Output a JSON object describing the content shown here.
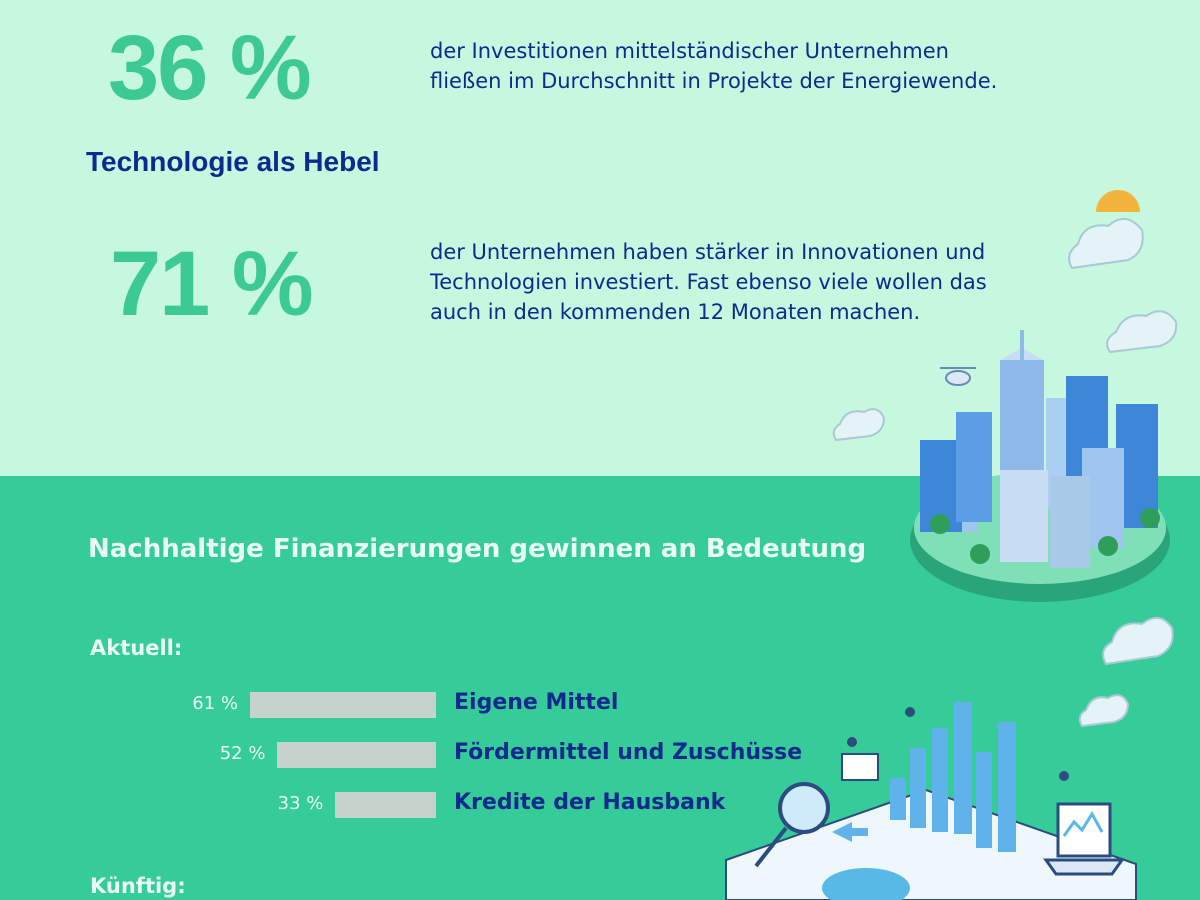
{
  "stats": [
    {
      "value": "36 %",
      "text_line1": "der Investitionen mittelständischer Unternehmen",
      "text_line2": "fließen im Durchschnitt in Projekte der Energiewende."
    },
    {
      "value": "71 %",
      "text_line1": "der Unternehmen haben stärker in Innovationen und",
      "text_line2": "Technologien investiert. Fast ebenso viele wollen das",
      "text_line3": "auch in den kommenden 12 Monaten machen."
    }
  ],
  "subheading": "Technologie als Hebel",
  "section_title": "Nachhaltige Finanzierungen gewinnen an Bedeutung",
  "groups": {
    "current_label": "Aktuell:",
    "future_label": "Künftig:"
  },
  "colors": {
    "top_bg": "#c6f7df",
    "bottom_bg": "#36cc9a",
    "stat_green": "#3cc993",
    "navy": "#0f2a8c",
    "bar_grey": "#c5d3cc"
  },
  "chart_data": {
    "type": "bar",
    "orientation": "horizontal",
    "title": "Nachhaltige Finanzierungen gewinnen an Bedeutung",
    "group": "Aktuell:",
    "categories": [
      "Eigene Mittel",
      "Fördermittel und Zuschüsse",
      "Kredite der Hausbank"
    ],
    "values": [
      61,
      52,
      33
    ],
    "value_labels": [
      "61 %",
      "52 %",
      "33 %"
    ],
    "unit": "%",
    "xlim": [
      0,
      100
    ],
    "grid": false,
    "legend": "none"
  }
}
